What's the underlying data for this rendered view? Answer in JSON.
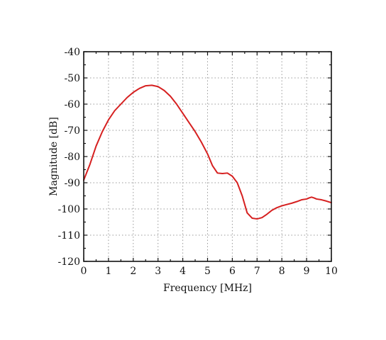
{
  "chart_data": {
    "type": "line",
    "title": "",
    "xlabel": "Frequency [MHz]",
    "ylabel": "Magnitude [dB]",
    "xlim": [
      0,
      10
    ],
    "ylim": [
      -120,
      -40
    ],
    "xticks": [
      0,
      1,
      2,
      3,
      4,
      5,
      6,
      7,
      8,
      9,
      10
    ],
    "yticks": [
      -120,
      -110,
      -100,
      -90,
      -80,
      -70,
      -60,
      -50,
      -40
    ],
    "grid": true,
    "series": [
      {
        "color": "#d62020",
        "x": [
          0,
          0.25,
          0.5,
          0.75,
          1.0,
          1.25,
          1.5,
          1.75,
          2.0,
          2.25,
          2.5,
          2.75,
          3.0,
          3.25,
          3.5,
          3.75,
          4.0,
          4.25,
          4.5,
          4.75,
          5.0,
          5.2,
          5.4,
          5.6,
          5.8,
          6.0,
          6.2,
          6.4,
          6.6,
          6.8,
          7.0,
          7.2,
          7.4,
          7.6,
          7.8,
          8.0,
          8.2,
          8.4,
          8.6,
          8.8,
          9.0,
          9.1,
          9.2,
          9.3,
          9.4,
          9.6,
          9.8,
          10.0
        ],
        "y": [
          -89,
          -83,
          -76,
          -70.5,
          -66,
          -62.5,
          -60,
          -57.5,
          -55.5,
          -54,
          -53,
          -52.8,
          -53.3,
          -54.8,
          -57,
          -60,
          -63.5,
          -67,
          -70.5,
          -74.5,
          -79,
          -83.5,
          -86.3,
          -86.5,
          -86.3,
          -87.5,
          -90,
          -95,
          -101.5,
          -103.5,
          -103.8,
          -103.3,
          -102,
          -100.5,
          -99.5,
          -98.8,
          -98.3,
          -97.8,
          -97.2,
          -96.5,
          -96.2,
          -95.8,
          -95.5,
          -95.8,
          -96.2,
          -96.5,
          -97,
          -97.6
        ]
      }
    ]
  }
}
